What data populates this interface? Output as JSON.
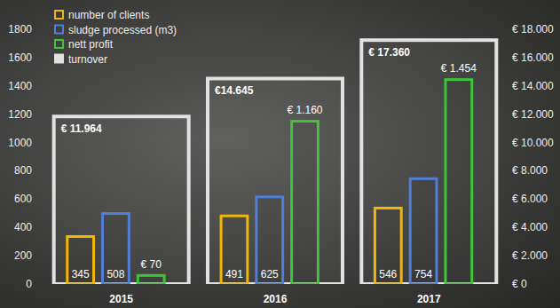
{
  "chart_data": {
    "type": "bar",
    "categories": [
      "2015",
      "2016",
      "2017"
    ],
    "series": [
      {
        "name": "number of clients",
        "color": "#f2b705",
        "values": [
          345,
          491,
          546
        ]
      },
      {
        "name": "sludge processed (m3)",
        "color": "#4f7fd6",
        "values": [
          508,
          625,
          754
        ]
      },
      {
        "name": "nett profit",
        "color": "#3fc43a",
        "values": [
          70,
          1160,
          1454
        ],
        "value_labels": [
          "€ 70",
          "€ 1.160",
          "€ 1.454"
        ]
      },
      {
        "name": "turnover",
        "color": "#e2e2e2",
        "axis": "y2",
        "values": [
          11964,
          14645,
          17360
        ],
        "value_labels": [
          "€ 11.964",
          "€14.645",
          "€ 17.360"
        ]
      }
    ],
    "ylim": [
      0,
      1800
    ],
    "yticks": [
      0,
      200,
      400,
      600,
      800,
      1000,
      1200,
      1400,
      1600,
      1800
    ],
    "y2lim": [
      0,
      18000
    ],
    "y2ticks": [
      {
        "value": 0,
        "label": "€ 0"
      },
      {
        "value": 2000,
        "label": "€ 2.000"
      },
      {
        "value": 4000,
        "label": "€ 4.000"
      },
      {
        "value": 6000,
        "label": "€ 6.000"
      },
      {
        "value": 8000,
        "label": "€ 8.000"
      },
      {
        "value": 10000,
        "label": "€ 10.000"
      },
      {
        "value": 12000,
        "label": "€ 12.000"
      },
      {
        "value": 14000,
        "label": "€ 14.000"
      },
      {
        "value": 16000,
        "label": "€ 16.000"
      },
      {
        "value": 18000,
        "label": "€ 18.000"
      }
    ],
    "data_labels": true,
    "legend": "top-left",
    "grid": false
  }
}
